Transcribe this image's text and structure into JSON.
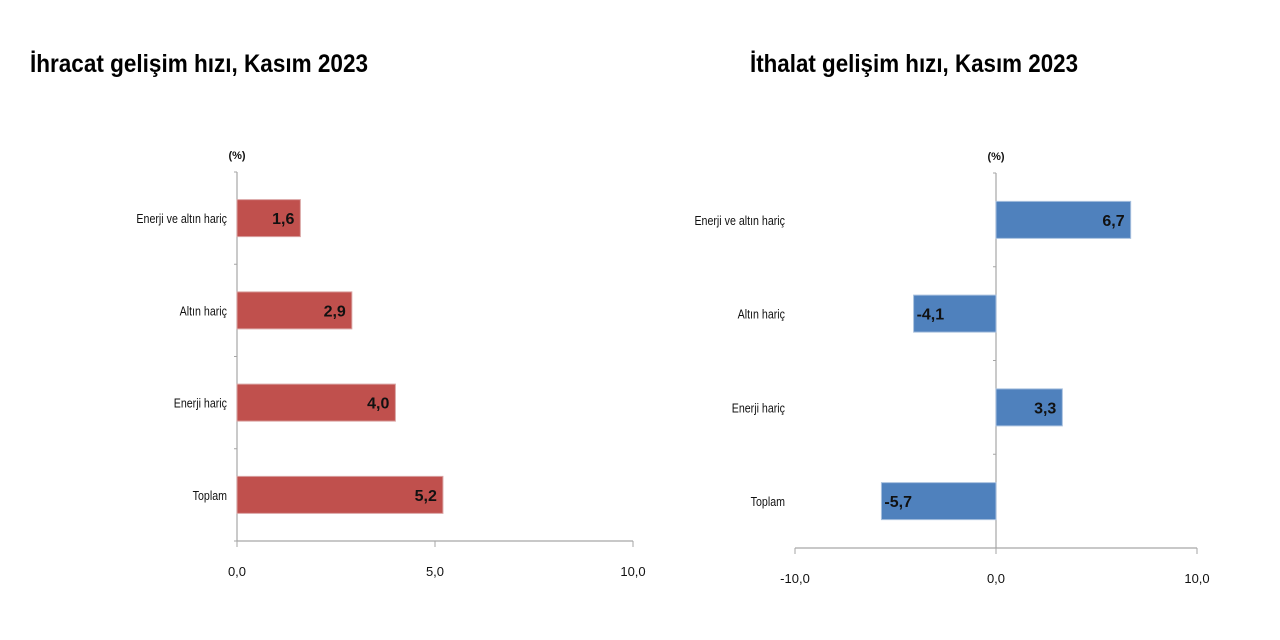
{
  "chart_data": [
    {
      "type": "bar",
      "orientation": "horizontal",
      "title": "İhracat gelişim hızı, Kasım 2023",
      "unit_label": "(%)",
      "categories": [
        "Enerji ve altın hariç",
        "Altın hariç",
        "Enerji hariç",
        "Toplam"
      ],
      "values": [
        1.6,
        2.9,
        4.0,
        5.2
      ],
      "data_labels": [
        "1,6",
        "2,9",
        "4,0",
        "5,2"
      ],
      "xlim": [
        0,
        10
      ],
      "xticks": [
        0,
        5,
        10
      ],
      "xtick_labels": [
        "0,0",
        "5,0",
        "10,0"
      ],
      "grid": false,
      "color": "#c0504d"
    },
    {
      "type": "bar",
      "orientation": "horizontal",
      "title": "İthalat gelişim hızı, Kasım 2023",
      "unit_label": "(%)",
      "categories": [
        "Enerji ve altın hariç",
        "Altın hariç",
        "Enerji hariç",
        "Toplam"
      ],
      "values": [
        6.7,
        -4.1,
        3.3,
        -5.7
      ],
      "data_labels": [
        "6,7",
        "-4,1",
        "3,3",
        "-5,7"
      ],
      "xlim": [
        -10,
        10
      ],
      "xticks": [
        -10,
        0,
        10
      ],
      "xtick_labels": [
        "-10,0",
        "0,0",
        "10,0"
      ],
      "grid": false,
      "color": "#4f81bd"
    }
  ]
}
